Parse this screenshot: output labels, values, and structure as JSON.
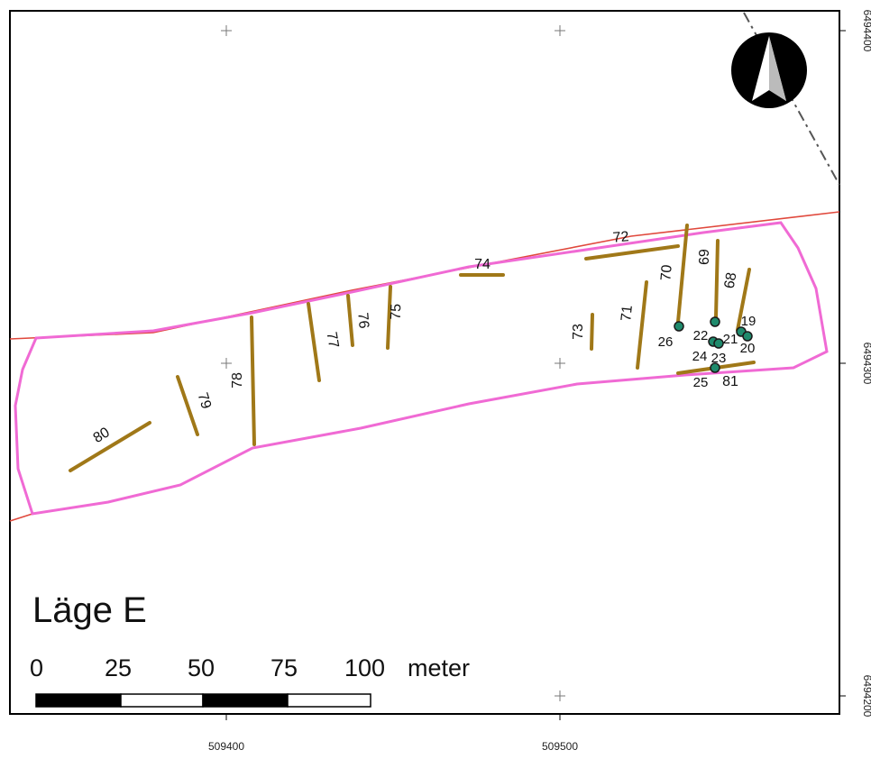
{
  "map": {
    "title": "Läge E",
    "colors": {
      "frame": "#000000",
      "area_boundary": "#f06ad4",
      "property_line": "#e0483c",
      "trench": "#a07818",
      "point_fill": "#1f8a6c",
      "dashdot_line": "#555555"
    },
    "x_ticks": [
      "509400",
      "509500"
    ],
    "y_ticks": [
      "6494400",
      "6494300",
      "6494200"
    ],
    "scale_bar": {
      "labels": [
        "0",
        "25",
        "50",
        "75",
        "100"
      ],
      "unit": "meter"
    },
    "north_arrow": {
      "icon": "north-arrow-icon"
    },
    "trenches": [
      {
        "id": "68"
      },
      {
        "id": "69"
      },
      {
        "id": "70"
      },
      {
        "id": "71"
      },
      {
        "id": "72"
      },
      {
        "id": "73"
      },
      {
        "id": "74"
      },
      {
        "id": "75"
      },
      {
        "id": "76"
      },
      {
        "id": "77"
      },
      {
        "id": "78"
      },
      {
        "id": "79"
      },
      {
        "id": "80"
      },
      {
        "id": "81"
      }
    ],
    "point_labels": [
      "19",
      "20",
      "21",
      "22",
      "23",
      "24",
      "25",
      "26"
    ]
  }
}
